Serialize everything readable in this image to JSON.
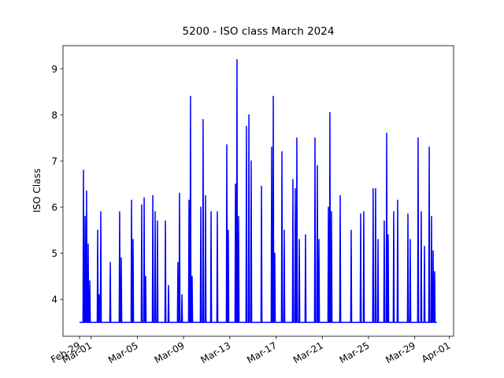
{
  "chart_data": {
    "type": "line",
    "title": "5200 - ISO class March 2024",
    "y_label": "ISO Class",
    "color": "#0000ff",
    "xlim": [
      -1.43,
      32.36
    ],
    "ylim": [
      3.2,
      9.5
    ],
    "xticks": [
      {
        "value": 0,
        "label": "Feb-29"
      },
      {
        "value": 1,
        "label": "Mar-01"
      },
      {
        "value": 5,
        "label": "Mar-05"
      },
      {
        "value": 9,
        "label": "Mar-09"
      },
      {
        "value": 13,
        "label": "Mar-13"
      },
      {
        "value": 17,
        "label": "Mar-17"
      },
      {
        "value": 21,
        "label": "Mar-21"
      },
      {
        "value": 25,
        "label": "Mar-25"
      },
      {
        "value": 29,
        "label": "Mar-29"
      },
      {
        "value": 32,
        "label": "Apr-01"
      }
    ],
    "yticks": [
      4,
      5,
      6,
      7,
      8,
      9
    ],
    "x": [
      0,
      0.3,
      0.34,
      0.38,
      0.44,
      0.48,
      0.52,
      0.57,
      0.61,
      0.65,
      0.71,
      0.75,
      0.79,
      0.85,
      0.89,
      0.93,
      1.53,
      1.57,
      1.61,
      1.66,
      1.7,
      1.74,
      1.8,
      1.84,
      1.88,
      2.62,
      2.66,
      2.7,
      3.43,
      3.47,
      3.51,
      3.57,
      3.61,
      3.65,
      4.46,
      4.5,
      4.54,
      4.59,
      4.63,
      4.67,
      5.34,
      5.38,
      5.42,
      5.55,
      5.59,
      5.63,
      5.68,
      5.72,
      5.76,
      6.3,
      6.34,
      6.38,
      6.5,
      6.54,
      6.58,
      6.7,
      6.74,
      6.78,
      7.39,
      7.43,
      7.47,
      7.66,
      7.7,
      7.74,
      8.47,
      8.51,
      8.55,
      8.61,
      8.65,
      8.69,
      8.82,
      8.86,
      8.9,
      9.43,
      9.47,
      9.51,
      9.56,
      9.6,
      9.64,
      9.7,
      9.74,
      9.78,
      10.45,
      10.49,
      10.53,
      10.65,
      10.69,
      10.73,
      10.86,
      10.9,
      10.94,
      11.34,
      11.38,
      11.42,
      11.88,
      11.92,
      11.96,
      12.7,
      12.74,
      12.78,
      12.83,
      12.87,
      12.91,
      13.45,
      13.49,
      13.53,
      13.58,
      13.62,
      13.66,
      13.72,
      13.76,
      13.8,
      14.4,
      14.44,
      14.48,
      14.61,
      14.65,
      14.69,
      14.81,
      14.85,
      14.89,
      15.7,
      15.74,
      15.78,
      16.58,
      16.62,
      16.66,
      16.72,
      16.76,
      16.8,
      16.85,
      16.89,
      16.93,
      17.47,
      17.51,
      17.55,
      17.67,
      17.71,
      17.75,
      18.42,
      18.46,
      18.5,
      18.62,
      18.66,
      18.7,
      18.76,
      18.8,
      18.84,
      18.97,
      19.01,
      19.05,
      19.51,
      19.55,
      19.59,
      20.33,
      20.37,
      20.41,
      20.53,
      20.57,
      20.61,
      20.67,
      20.71,
      20.75,
      21.49,
      21.53,
      21.57,
      21.62,
      21.66,
      21.7,
      21.76,
      21.8,
      21.84,
      22.51,
      22.55,
      22.59,
      23.46,
      23.5,
      23.54,
      24.28,
      24.32,
      24.36,
      24.55,
      24.59,
      24.63,
      25.36,
      25.4,
      25.44,
      25.57,
      25.61,
      25.65,
      25.78,
      25.82,
      25.86,
      26.32,
      26.36,
      26.4,
      26.53,
      26.57,
      26.61,
      26.66,
      26.7,
      26.74,
      27.14,
      27.18,
      27.22,
      27.48,
      27.52,
      27.56,
      28.37,
      28.41,
      28.45,
      28.57,
      28.61,
      28.65,
      29.25,
      29.29,
      29.33,
      29.52,
      29.56,
      29.6,
      29.8,
      29.84,
      29.88,
      30.21,
      30.25,
      30.29,
      30.41,
      30.45,
      30.49,
      30.55,
      30.59,
      30.63,
      30.68,
      30.72,
      30.76,
      30.9
    ],
    "values": [
      3.5,
      3.5,
      6.8,
      3.5,
      3.5,
      5.8,
      3.5,
      3.5,
      6.35,
      3.5,
      3.5,
      5.2,
      3.5,
      3.5,
      4.4,
      3.5,
      3.5,
      5.5,
      3.5,
      3.5,
      4.1,
      3.5,
      3.5,
      5.9,
      3.5,
      3.5,
      4.8,
      3.5,
      3.5,
      5.9,
      3.5,
      3.5,
      4.9,
      3.5,
      3.5,
      6.15,
      3.5,
      3.5,
      5.3,
      3.5,
      3.5,
      6.05,
      3.5,
      3.5,
      6.2,
      3.5,
      3.5,
      4.5,
      3.5,
      3.5,
      6.25,
      3.5,
      3.5,
      5.9,
      3.5,
      3.5,
      5.7,
      3.5,
      3.5,
      5.7,
      3.5,
      3.5,
      4.3,
      3.5,
      3.5,
      4.8,
      3.5,
      3.5,
      6.3,
      3.5,
      3.5,
      4.1,
      3.5,
      3.5,
      6.15,
      3.5,
      3.5,
      8.4,
      3.5,
      3.5,
      4.5,
      3.5,
      3.5,
      6.0,
      3.5,
      3.5,
      7.9,
      3.5,
      3.5,
      6.25,
      3.5,
      3.5,
      5.9,
      3.5,
      3.5,
      5.9,
      3.5,
      3.5,
      7.35,
      3.5,
      3.5,
      5.5,
      3.5,
      3.5,
      6.5,
      3.5,
      3.5,
      9.2,
      3.5,
      3.5,
      5.8,
      3.5,
      3.5,
      7.75,
      3.5,
      3.5,
      8.0,
      3.5,
      3.5,
      7.0,
      3.5,
      3.5,
      6.45,
      3.5,
      3.5,
      7.3,
      3.5,
      3.5,
      8.4,
      3.5,
      3.5,
      5.0,
      3.5,
      3.5,
      7.2,
      3.5,
      3.5,
      5.5,
      3.5,
      3.5,
      6.6,
      3.5,
      3.5,
      6.4,
      3.5,
      3.5,
      7.5,
      3.5,
      3.5,
      5.3,
      3.5,
      3.5,
      5.4,
      3.5,
      3.5,
      7.5,
      3.5,
      3.5,
      6.9,
      3.5,
      3.5,
      5.3,
      3.5,
      3.5,
      6.0,
      3.5,
      3.5,
      8.05,
      3.5,
      3.5,
      5.9,
      3.5,
      3.5,
      6.25,
      3.5,
      3.5,
      5.5,
      3.5,
      3.5,
      5.85,
      3.5,
      3.5,
      5.9,
      3.5,
      3.5,
      6.4,
      3.5,
      3.5,
      6.4,
      3.5,
      3.5,
      5.3,
      3.5,
      3.5,
      5.7,
      3.5,
      3.5,
      7.6,
      3.5,
      3.5,
      5.4,
      3.5,
      3.5,
      5.9,
      3.5,
      3.5,
      6.15,
      3.5,
      3.5,
      5.85,
      3.5,
      3.5,
      5.3,
      3.5,
      3.5,
      7.5,
      3.5,
      3.5,
      5.9,
      3.5,
      3.5,
      5.15,
      3.5,
      3.5,
      7.3,
      3.5,
      3.5,
      5.8,
      3.5,
      3.5,
      5.05,
      3.5,
      3.5,
      4.6,
      3.5,
      3.5
    ]
  }
}
